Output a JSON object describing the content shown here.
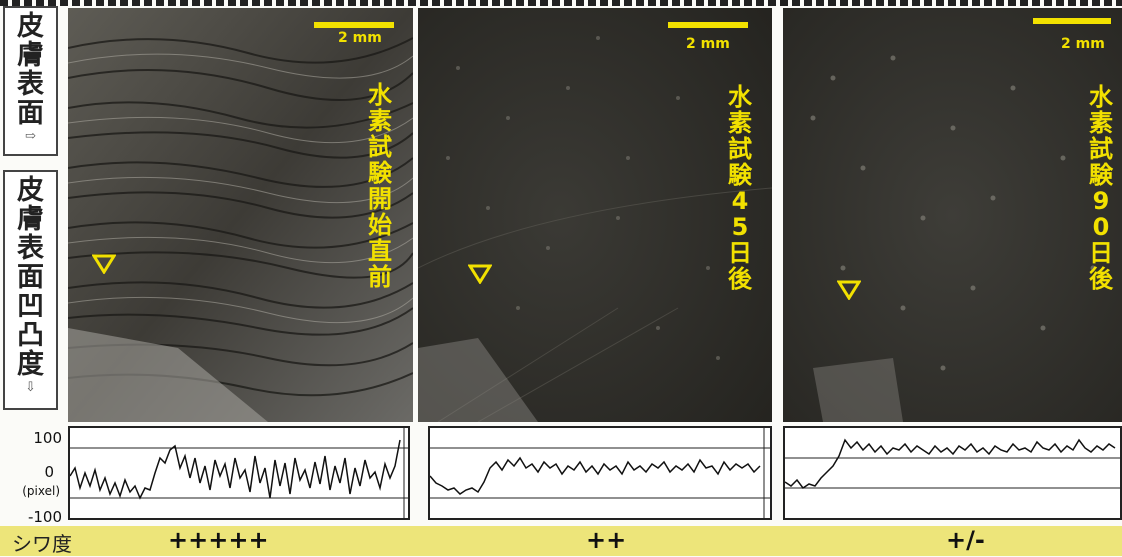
{
  "side_labels": {
    "top": [
      "皮",
      "膚",
      "表",
      "面"
    ],
    "top_arrow": "⇨",
    "bottom": [
      "皮",
      "膚",
      "表",
      "面",
      "凹",
      "凸",
      "度"
    ],
    "bottom_arrow": "⇩"
  },
  "panels": [
    {
      "scale_label": "2 mm",
      "caption": "水素試験開始直前",
      "rating": "+++++"
    },
    {
      "scale_label": "2 mm",
      "caption": "水素試験45日後",
      "rating": "++"
    },
    {
      "scale_label": "2 mm",
      "caption": "水素試験90日後",
      "rating": "+/-"
    }
  ],
  "profile_axis": {
    "top": "100",
    "mid": "0",
    "unit": "(pixel)",
    "bottom": "-100"
  },
  "bottom_band": {
    "label": "シワ度"
  },
  "colors": {
    "annotation": "#f2e100",
    "band": "#ede57a"
  }
}
